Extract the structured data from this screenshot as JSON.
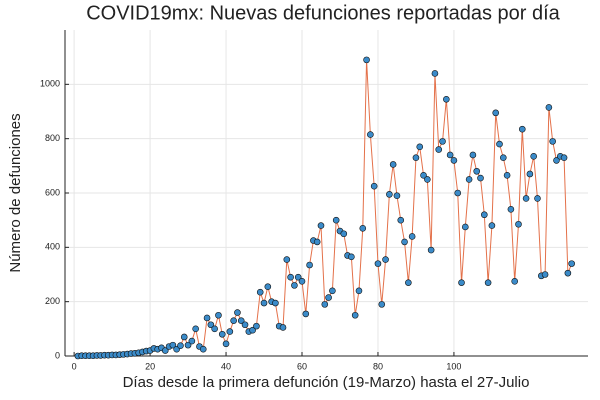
{
  "chart_data": {
    "type": "line",
    "title": "COVID19mx: Nuevas defunciones reportadas por día",
    "xlabel": "Días desde la primera defunción (19-Marzo) hasta el 27-Julio",
    "ylabel": "Número de defunciones",
    "x": [
      1,
      2,
      3,
      4,
      5,
      6,
      7,
      8,
      9,
      10,
      11,
      12,
      13,
      14,
      15,
      16,
      17,
      18,
      19,
      20,
      21,
      22,
      23,
      24,
      25,
      26,
      27,
      28,
      29,
      30,
      31,
      32,
      33,
      34,
      35,
      36,
      37,
      38,
      39,
      40,
      41,
      42,
      43,
      44,
      45,
      46,
      47,
      48,
      49,
      50,
      51,
      52,
      53,
      54,
      55,
      56,
      57,
      58,
      59,
      60,
      61,
      62,
      63,
      64,
      65,
      66,
      67,
      68,
      69,
      70,
      71,
      72,
      73,
      74,
      75,
      76,
      77,
      78,
      79,
      80,
      81,
      82,
      83,
      84,
      85,
      86,
      87,
      88,
      89,
      90,
      91,
      92,
      93,
      94,
      95,
      96,
      97,
      98,
      99,
      100,
      101,
      102,
      103,
      104,
      105,
      106,
      107,
      108,
      109,
      110,
      111,
      112,
      113,
      114,
      115,
      116,
      117,
      118,
      119,
      120,
      121,
      122,
      123,
      124,
      125,
      126,
      127,
      128,
      129,
      130,
      131
    ],
    "series": [
      {
        "line_color": "#e4714a",
        "marker_color": "#3b8bc9",
        "values": [
          0,
          1,
          1,
          1,
          1,
          2,
          2,
          3,
          3,
          4,
          4,
          5,
          6,
          7,
          9,
          10,
          12,
          15,
          18,
          20,
          28,
          25,
          30,
          20,
          35,
          40,
          25,
          38,
          70,
          40,
          55,
          100,
          35,
          25,
          140,
          115,
          100,
          150,
          80,
          45,
          90,
          130,
          160,
          130,
          115,
          90,
          95,
          110,
          235,
          195,
          255,
          200,
          195,
          110,
          105,
          355,
          290,
          260,
          290,
          275,
          155,
          335,
          425,
          420,
          480,
          190,
          215,
          240,
          500,
          460,
          450,
          370,
          365,
          150,
          240,
          470,
          1090,
          815,
          625,
          340,
          190,
          355,
          595,
          705,
          590,
          500,
          420,
          270,
          440,
          730,
          770,
          665,
          650,
          390,
          1040,
          760,
          790,
          945,
          740,
          720,
          600,
          270,
          475,
          650,
          740,
          680,
          655,
          520,
          270,
          480,
          895,
          780,
          730,
          665,
          540,
          275,
          485,
          835,
          580,
          670,
          735,
          580,
          295,
          300,
          915,
          790,
          720,
          735,
          730,
          305,
          340
        ]
      }
    ],
    "xlim": [
      -2.4,
      135.3
    ],
    "ylim": [
      0,
      1200
    ],
    "xticks": [
      0,
      20,
      40,
      60,
      80,
      100
    ],
    "yticks": [
      0,
      200,
      400,
      600,
      800,
      1000
    ],
    "grid": true
  }
}
